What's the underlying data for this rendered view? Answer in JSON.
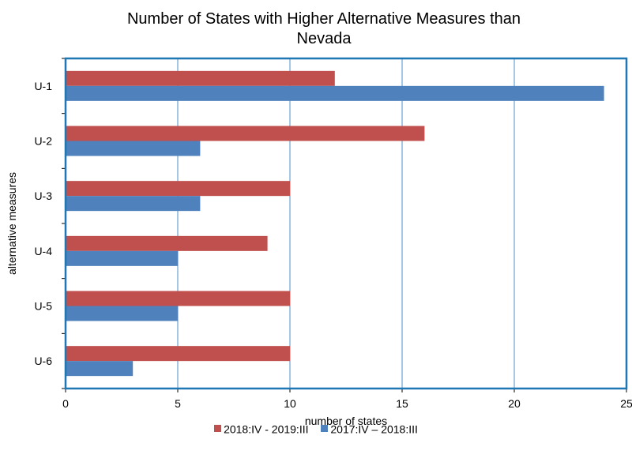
{
  "chart_data": {
    "type": "bar",
    "orientation": "horizontal",
    "title_lines": [
      "Number of States with Higher Alternative Measures than",
      "Nevada"
    ],
    "xlabel": "number of states",
    "ylabel": "alternative measures",
    "xlim": [
      0,
      25
    ],
    "xticks": [
      "0",
      "5",
      "10",
      "15",
      "20",
      "25"
    ],
    "grid": "vertical",
    "legend_position": "bottom",
    "categories": [
      "U-1",
      "U-2",
      "U-3",
      "U-4",
      "U-5",
      "U-6"
    ],
    "series": [
      {
        "name": "2018:IV - 2019:III",
        "color": "#c0504d",
        "values": [
          12,
          16,
          10,
          9,
          10,
          10
        ]
      },
      {
        "name": "2017:IV – 2018:III",
        "color": "#4f81bd",
        "values": [
          24,
          6,
          6,
          5,
          5,
          3
        ]
      }
    ],
    "plot_border_color": "#1f77b4",
    "gridline_color": "#4f91c9"
  }
}
